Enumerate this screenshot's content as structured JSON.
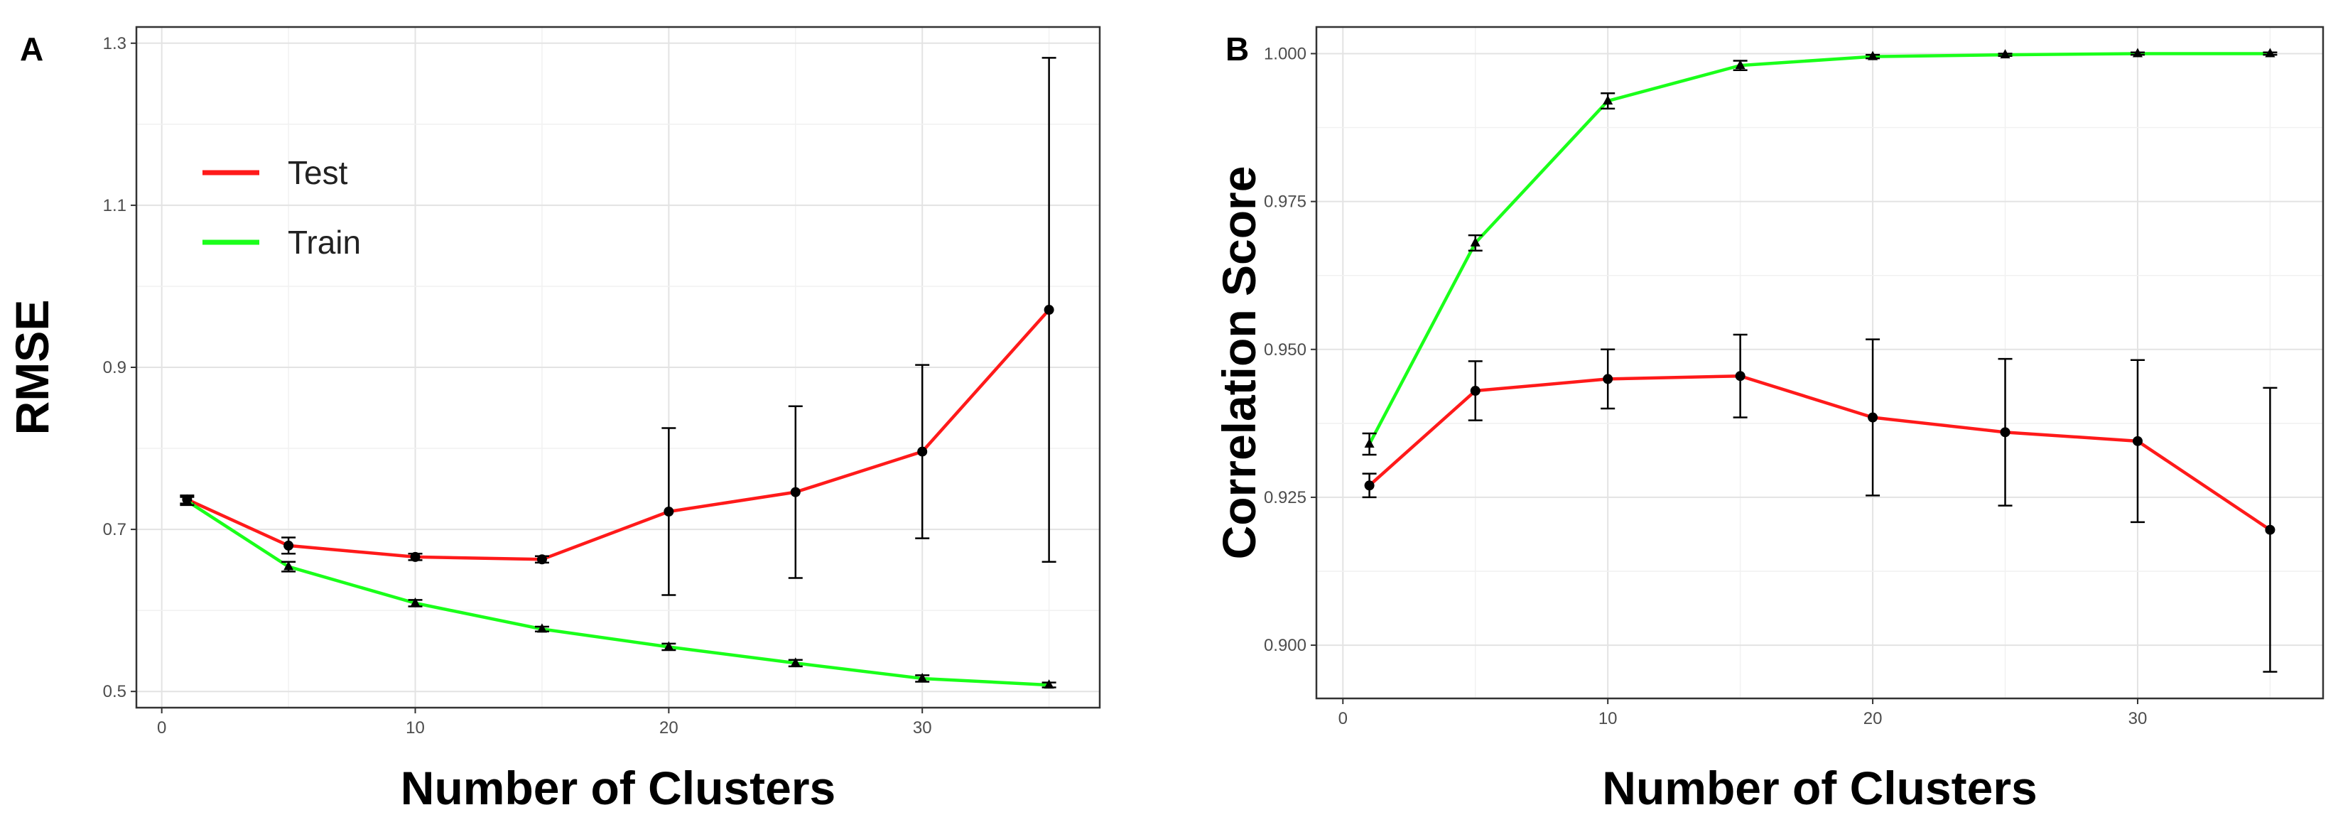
{
  "chart_data": [
    {
      "panel": "A",
      "type": "line",
      "xlabel": "Number of Clusters",
      "ylabel": "RMSE",
      "xlim": [
        -1,
        37
      ],
      "ylim": [
        0.48,
        1.32
      ],
      "x_ticks": [
        0,
        10,
        20,
        30
      ],
      "y_ticks": [
        0.5,
        0.7,
        0.9,
        1.1,
        1.3
      ],
      "y_tick_labels": [
        "0.5",
        "0.7",
        "0.9",
        "1.1",
        "1.3"
      ],
      "grid": true,
      "legend_position": "top-left",
      "legend": [
        "Test",
        "Train"
      ],
      "x": [
        1,
        5,
        10,
        15,
        20,
        25,
        30,
        35
      ],
      "series": [
        {
          "name": "Test",
          "color": "#ff1a1a",
          "marker": "circle",
          "values": [
            0.737,
            0.68,
            0.666,
            0.663,
            0.722,
            0.746,
            0.796,
            0.971
          ],
          "error": [
            0.005,
            0.01,
            0.004,
            0.004,
            0.103,
            0.106,
            0.107,
            0.311
          ]
        },
        {
          "name": "Train",
          "color": "#1aff1a",
          "marker": "triangle",
          "values": [
            0.735,
            0.654,
            0.609,
            0.577,
            0.555,
            0.535,
            0.516,
            0.508
          ],
          "error": [
            0.005,
            0.006,
            0.004,
            0.003,
            0.004,
            0.004,
            0.004,
            0.003
          ]
        }
      ]
    },
    {
      "panel": "B",
      "type": "line",
      "xlabel": "Number of Clusters",
      "ylabel": "Correlation Score",
      "xlim": [
        -1,
        37
      ],
      "ylim": [
        0.891,
        1.0045
      ],
      "x_ticks": [
        0,
        10,
        20,
        30
      ],
      "y_ticks": [
        0.9,
        0.925,
        0.95,
        0.975,
        1.0
      ],
      "y_tick_labels": [
        "0.900",
        "0.925",
        "0.950",
        "0.975",
        "1.000"
      ],
      "grid": true,
      "legend_position": "none",
      "legend": [],
      "x": [
        1,
        5,
        10,
        15,
        20,
        25,
        30,
        35
      ],
      "series": [
        {
          "name": "Test",
          "color": "#ff1a1a",
          "marker": "circle",
          "values": [
            0.927,
            0.943,
            0.945,
            0.9455,
            0.9385,
            0.936,
            0.9345,
            0.9195
          ],
          "error": [
            0.002,
            0.005,
            0.005,
            0.007,
            0.0132,
            0.0124,
            0.0137,
            0.024
          ]
        },
        {
          "name": "Train",
          "color": "#1aff1a",
          "marker": "triangle",
          "values": [
            0.934,
            0.968,
            0.992,
            0.998,
            0.9995,
            0.9998,
            1.0,
            1.0
          ],
          "error": [
            0.0018,
            0.0013,
            0.0013,
            0.0008,
            0.0003,
            0.0002,
            0.0002,
            0.0002
          ]
        }
      ]
    }
  ],
  "panels": {
    "a_letter": "A",
    "b_letter": "B"
  }
}
